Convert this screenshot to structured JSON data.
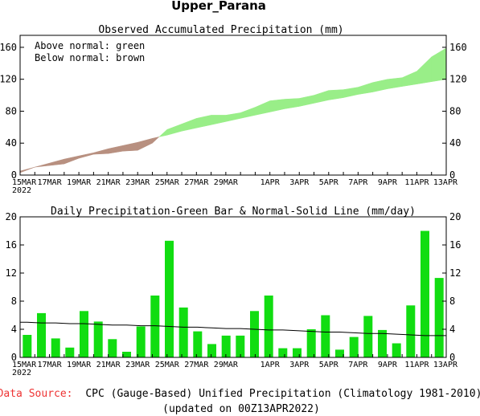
{
  "page": {
    "title": "Upper_Parana",
    "source_label": "Data Source:",
    "source_text": "CPC (Gauge-Based) Unified Precipitation (Climatology 1981-2010)",
    "updated": "(updated on 00Z13APR2022)"
  },
  "colors": {
    "above_normal": "#99ee88",
    "below_normal": "#b89080",
    "bar": "#11dd11",
    "normal_line": "#000000",
    "source_label": "#ee3333"
  },
  "x_labels": [
    {
      "day": 0,
      "label": "15MAR"
    },
    {
      "day": 2,
      "label": "17MAR"
    },
    {
      "day": 4,
      "label": "19MAR"
    },
    {
      "day": 6,
      "label": "21MAR"
    },
    {
      "day": 8,
      "label": "23MAR"
    },
    {
      "day": 10,
      "label": "25MAR"
    },
    {
      "day": 12,
      "label": "27MAR"
    },
    {
      "day": 14,
      "label": "29MAR"
    },
    {
      "day": 17,
      "label": "1APR"
    },
    {
      "day": 19,
      "label": "3APR"
    },
    {
      "day": 21,
      "label": "5APR"
    },
    {
      "day": 23,
      "label": "7APR"
    },
    {
      "day": 25,
      "label": "9APR"
    },
    {
      "day": 27,
      "label": "11APR"
    },
    {
      "day": 29,
      "label": "13APR"
    }
  ],
  "x_year": "2022",
  "chart_data": [
    {
      "type": "area",
      "title": "Observed Accumulated Precipitation (mm)",
      "legend": [
        "Above normal: green",
        "Below normal: brown"
      ],
      "x": [
        "15MAR",
        "16MAR",
        "17MAR",
        "18MAR",
        "19MAR",
        "20MAR",
        "21MAR",
        "22MAR",
        "23MAR",
        "24MAR",
        "25MAR",
        "26MAR",
        "27MAR",
        "28MAR",
        "29MAR",
        "30MAR",
        "31MAR",
        "1APR",
        "2APR",
        "3APR",
        "4APR",
        "5APR",
        "6APR",
        "7APR",
        "8APR",
        "9APR",
        "10APR",
        "11APR",
        "12APR",
        "13APR"
      ],
      "series": [
        {
          "name": "Observed",
          "values": [
            3,
            10,
            12,
            14,
            21,
            26,
            27,
            30,
            31,
            40,
            57,
            64,
            71,
            75,
            75,
            78,
            85,
            93,
            95,
            96,
            100,
            106,
            107,
            110,
            116,
            120,
            122,
            130,
            148,
            159
          ]
        },
        {
          "name": "Normal",
          "values": [
            5,
            10,
            15,
            20,
            24,
            28,
            33,
            37,
            41,
            46,
            50,
            55,
            59,
            63,
            67,
            71,
            75,
            79,
            83,
            86,
            90,
            94,
            97,
            101,
            104,
            108,
            111,
            114,
            117,
            120
          ]
        }
      ],
      "ylim": [
        0,
        175
      ],
      "yticks": [
        0,
        40,
        80,
        120,
        160
      ],
      "grid": false
    },
    {
      "type": "bar",
      "title": "Daily Precipitation-Green Bar & Normal-Solid Line (mm/day)",
      "x": [
        "15MAR",
        "16MAR",
        "17MAR",
        "18MAR",
        "19MAR",
        "20MAR",
        "21MAR",
        "22MAR",
        "23MAR",
        "24MAR",
        "25MAR",
        "26MAR",
        "27MAR",
        "28MAR",
        "29MAR",
        "30MAR",
        "31MAR",
        "1APR",
        "2APR",
        "3APR",
        "4APR",
        "5APR",
        "6APR",
        "7APR",
        "8APR",
        "9APR",
        "10APR",
        "11APR",
        "12APR",
        "13APR"
      ],
      "series": [
        {
          "name": "Daily Precipitation",
          "values": [
            3.2,
            6.3,
            2.7,
            1.4,
            6.6,
            5.1,
            2.6,
            0.8,
            4.4,
            8.8,
            16.6,
            7.1,
            3.7,
            1.9,
            3.1,
            3.1,
            6.6,
            8.8,
            1.3,
            1.3,
            4.0,
            6.0,
            1.1,
            2.9,
            5.9,
            3.9,
            2.0,
            7.4,
            18.0,
            11.3
          ]
        },
        {
          "name": "Normal",
          "values": [
            5.0,
            4.9,
            4.9,
            4.8,
            4.8,
            4.7,
            4.6,
            4.6,
            4.5,
            4.5,
            4.4,
            4.3,
            4.3,
            4.2,
            4.1,
            4.1,
            4.0,
            3.9,
            3.9,
            3.8,
            3.7,
            3.6,
            3.6,
            3.5,
            3.4,
            3.4,
            3.3,
            3.2,
            3.1,
            3.1
          ]
        }
      ],
      "ylim": [
        0,
        20
      ],
      "yticks": [
        0,
        4,
        8,
        12,
        16,
        20
      ],
      "grid": false
    }
  ]
}
